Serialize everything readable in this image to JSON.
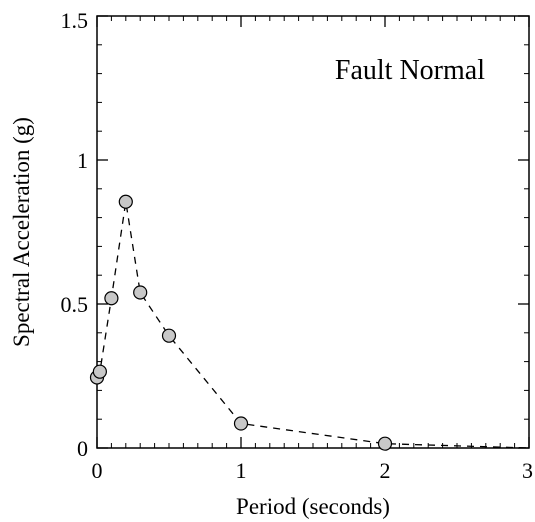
{
  "chart_data": {
    "type": "scatter",
    "title": "",
    "annotation": "Fault Normal",
    "xlabel": "Period (seconds)",
    "ylabel": "Spectral Acceleration (g)",
    "xlim": [
      0,
      3
    ],
    "ylim": [
      0,
      1.5
    ],
    "x_ticks": [
      0,
      1,
      2,
      3
    ],
    "x_tick_labels": [
      "0",
      "1",
      "2",
      "3"
    ],
    "y_ticks": [
      0,
      0.5,
      1,
      1.5
    ],
    "y_tick_labels": [
      "0",
      "0.5",
      "1",
      "1.5"
    ],
    "x_minor_step": 0.1,
    "y_minor_step": 0.1,
    "grid": false,
    "series": [
      {
        "marker": "circle",
        "line_style": "dashed",
        "marker_fill": "#c8c8c8",
        "line_color": "#000000",
        "x": [
          0.0,
          0.02,
          0.1,
          0.2,
          0.3,
          0.5,
          1.0,
          2.0,
          3.0
        ],
        "y": [
          0.245,
          0.265,
          0.52,
          0.855,
          0.54,
          0.39,
          0.085,
          0.015,
          0.0
        ],
        "marker_mask": [
          true,
          true,
          true,
          true,
          true,
          true,
          true,
          true,
          false
        ]
      }
    ]
  }
}
